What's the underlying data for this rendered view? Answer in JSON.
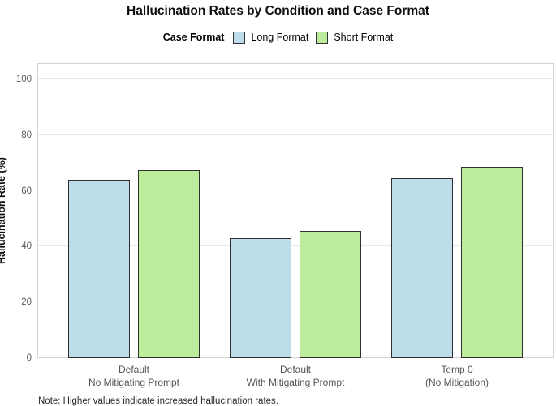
{
  "note": "Note: Higher values indicate increased hallucination rates.",
  "legend": {
    "title": "Case Format",
    "items": [
      {
        "label": "Long Format",
        "color": "#bcdde9"
      },
      {
        "label": "Short Format",
        "color": "#bdec9c"
      }
    ]
  },
  "chart_data": {
    "type": "bar",
    "title": "Hallucination Rates by Condition and Case Format",
    "xlabel": "",
    "ylabel": "Hallucination Rate (%)",
    "ylim": [
      0,
      105.8
    ],
    "yticks": [
      0,
      20,
      40,
      60,
      80,
      100
    ],
    "grid": "horizontal-major",
    "legend_position": "top",
    "categories": [
      [
        "Default",
        "No Mitigating Prompt"
      ],
      [
        "Default",
        "With Mitigating Prompt"
      ],
      [
        "Temp 0",
        "(No Mitigation)"
      ]
    ],
    "series": [
      {
        "name": "Long Format",
        "color": "#bcdde9",
        "values": [
          64.0,
          43.0,
          64.5
        ]
      },
      {
        "name": "Short Format",
        "color": "#bdec9c",
        "values": [
          67.5,
          45.5,
          68.5
        ]
      }
    ],
    "bar_border_color": "#2f2f2f"
  }
}
